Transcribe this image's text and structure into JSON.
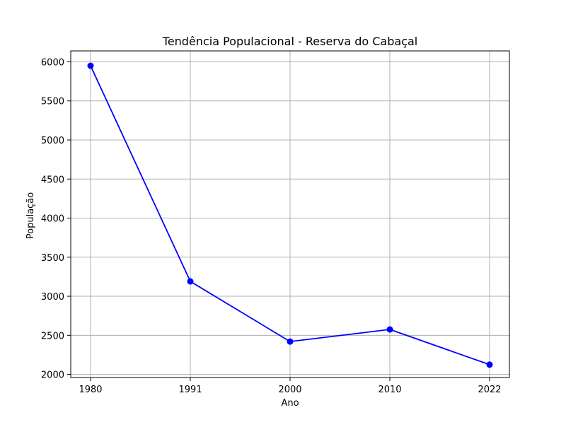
{
  "chart_data": {
    "type": "line",
    "title": "Tendência Populacional - Reserva do Cabaçal",
    "xlabel": "Ano",
    "ylabel": "População",
    "x_categories": [
      "1980",
      "1991",
      "2000",
      "2010",
      "2022"
    ],
    "series": [
      {
        "values": [
          5950,
          3190,
          2420,
          2575,
          2125
        ],
        "color": "#0000ff",
        "marker": "circle"
      }
    ],
    "yticks": [
      2000,
      2500,
      3000,
      3500,
      4000,
      4500,
      5000,
      5500,
      6000
    ],
    "ylim": [
      1960,
      6140
    ],
    "grid": true
  }
}
